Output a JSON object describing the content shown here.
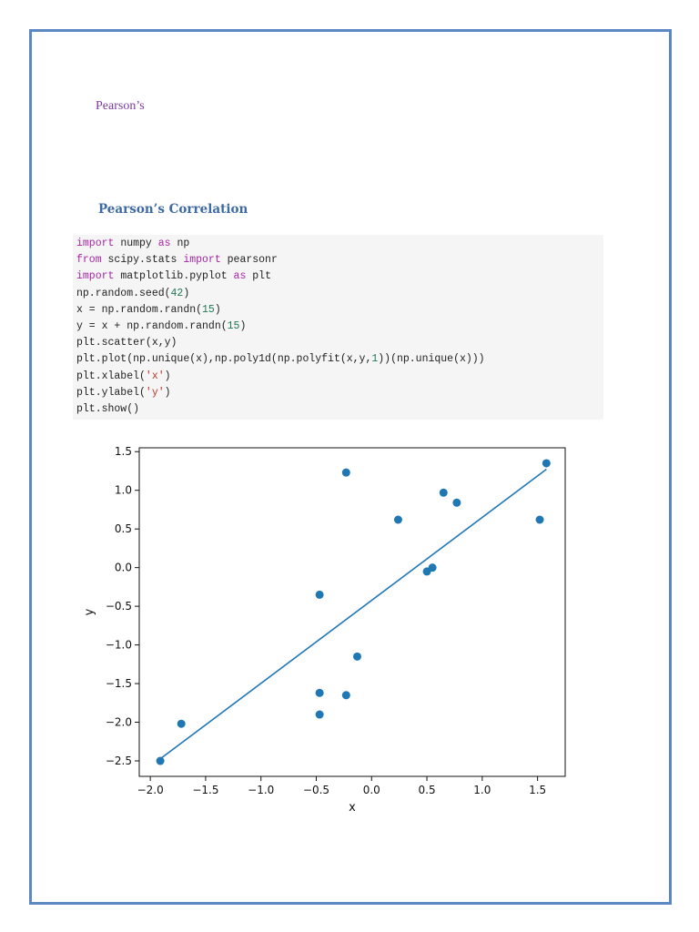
{
  "document": {
    "header_text": "Pearson’s",
    "section_heading": "Pearson’s Correlation"
  },
  "code": {
    "lines": [
      [
        {
          "t": "import",
          "c": "kw"
        },
        {
          "t": " numpy "
        },
        {
          "t": "as",
          "c": "kw"
        },
        {
          "t": " np"
        }
      ],
      [
        {
          "t": "from",
          "c": "kw"
        },
        {
          "t": " scipy.stats "
        },
        {
          "t": "import",
          "c": "kw"
        },
        {
          "t": " pearsonr"
        }
      ],
      [
        {
          "t": "import",
          "c": "kw"
        },
        {
          "t": " matplotlib.pyplot "
        },
        {
          "t": "as",
          "c": "kw"
        },
        {
          "t": " plt"
        }
      ],
      [
        {
          "t": "np.random.seed("
        },
        {
          "t": "42",
          "c": "num"
        },
        {
          "t": ")"
        }
      ],
      [
        {
          "t": "x = np.random.randn("
        },
        {
          "t": "15",
          "c": "num"
        },
        {
          "t": ")"
        }
      ],
      [
        {
          "t": "y = x + np.random.randn("
        },
        {
          "t": "15",
          "c": "num"
        },
        {
          "t": ")"
        }
      ],
      [
        {
          "t": "plt.scatter(x,y)"
        }
      ],
      [
        {
          "t": "plt.plot(np.unique(x),np.poly1d(np.polyfit(x,y,"
        },
        {
          "t": "1",
          "c": "num"
        },
        {
          "t": "))(np.unique(x)))"
        }
      ],
      [
        {
          "t": "plt.xlabel("
        },
        {
          "t": "'x'",
          "c": "str"
        },
        {
          "t": ")"
        }
      ],
      [
        {
          "t": "plt.ylabel("
        },
        {
          "t": "'y'",
          "c": "str"
        },
        {
          "t": ")"
        }
      ],
      [
        {
          "t": "plt.show()"
        }
      ]
    ]
  },
  "colors": {
    "border": "#5b87c2",
    "header_text": "#7b3aa3",
    "heading": "#3e6aa3",
    "code_bg": "#f5f5f5",
    "keyword": "#a626a4",
    "number": "#1f7a52",
    "string": "#c0392b",
    "series": "#1f77b4"
  },
  "chart_data": {
    "type": "scatter",
    "xlabel": "x",
    "ylabel": "y",
    "xlim": [
      -2.1,
      1.75
    ],
    "ylim": [
      -2.7,
      1.55
    ],
    "xticks": [
      -2.0,
      -1.5,
      -1.0,
      -0.5,
      0.0,
      0.5,
      1.0,
      1.5
    ],
    "xtick_labels": [
      "−2.0",
      "−1.5",
      "−1.0",
      "−0.5",
      "0.0",
      "0.5",
      "1.0",
      "1.5"
    ],
    "yticks": [
      1.5,
      1.0,
      0.5,
      0.0,
      -0.5,
      -1.0,
      -1.5,
      -2.0,
      -2.5
    ],
    "ytick_labels": [
      "1.5",
      "1.0",
      "0.5",
      "0.0",
      "−0.5",
      "−1.0",
      "−1.5",
      "−2.0",
      "−2.5"
    ],
    "grid": false,
    "points": [
      [
        -1.91,
        -2.5
      ],
      [
        -1.72,
        -2.02
      ],
      [
        -0.47,
        -0.35
      ],
      [
        -0.47,
        -1.62
      ],
      [
        -0.47,
        -1.9
      ],
      [
        -0.23,
        1.23
      ],
      [
        -0.23,
        -1.65
      ],
      [
        -0.13,
        -1.15
      ],
      [
        0.24,
        0.62
      ],
      [
        0.5,
        -0.05
      ],
      [
        0.55,
        0.0
      ],
      [
        0.65,
        0.97
      ],
      [
        0.77,
        0.84
      ],
      [
        1.52,
        0.62
      ],
      [
        1.58,
        1.35
      ]
    ],
    "fit_line": {
      "slope": 1.073,
      "intercept": -0.424
    }
  }
}
